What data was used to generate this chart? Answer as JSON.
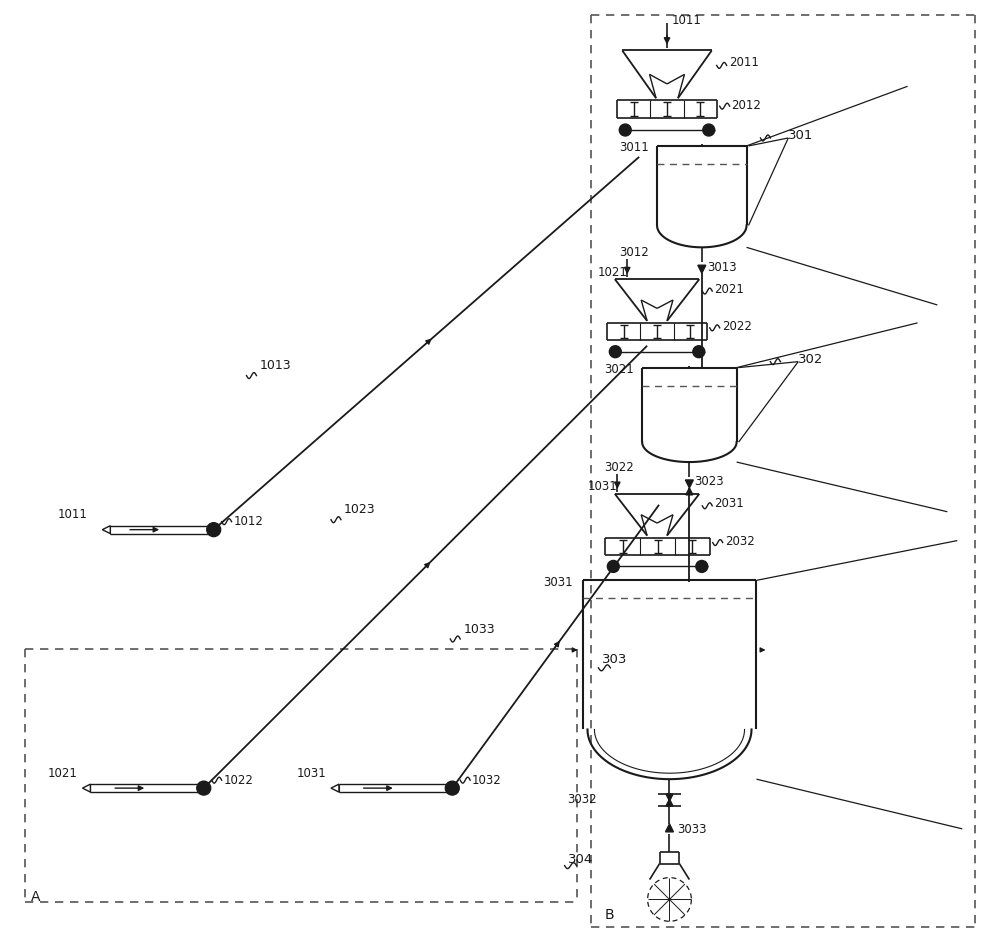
{
  "bg_color": "#ffffff",
  "lc": "#1a1a1a",
  "dc": "#555555",
  "figsize": [
    10.0,
    9.41
  ],
  "dpi": 100
}
